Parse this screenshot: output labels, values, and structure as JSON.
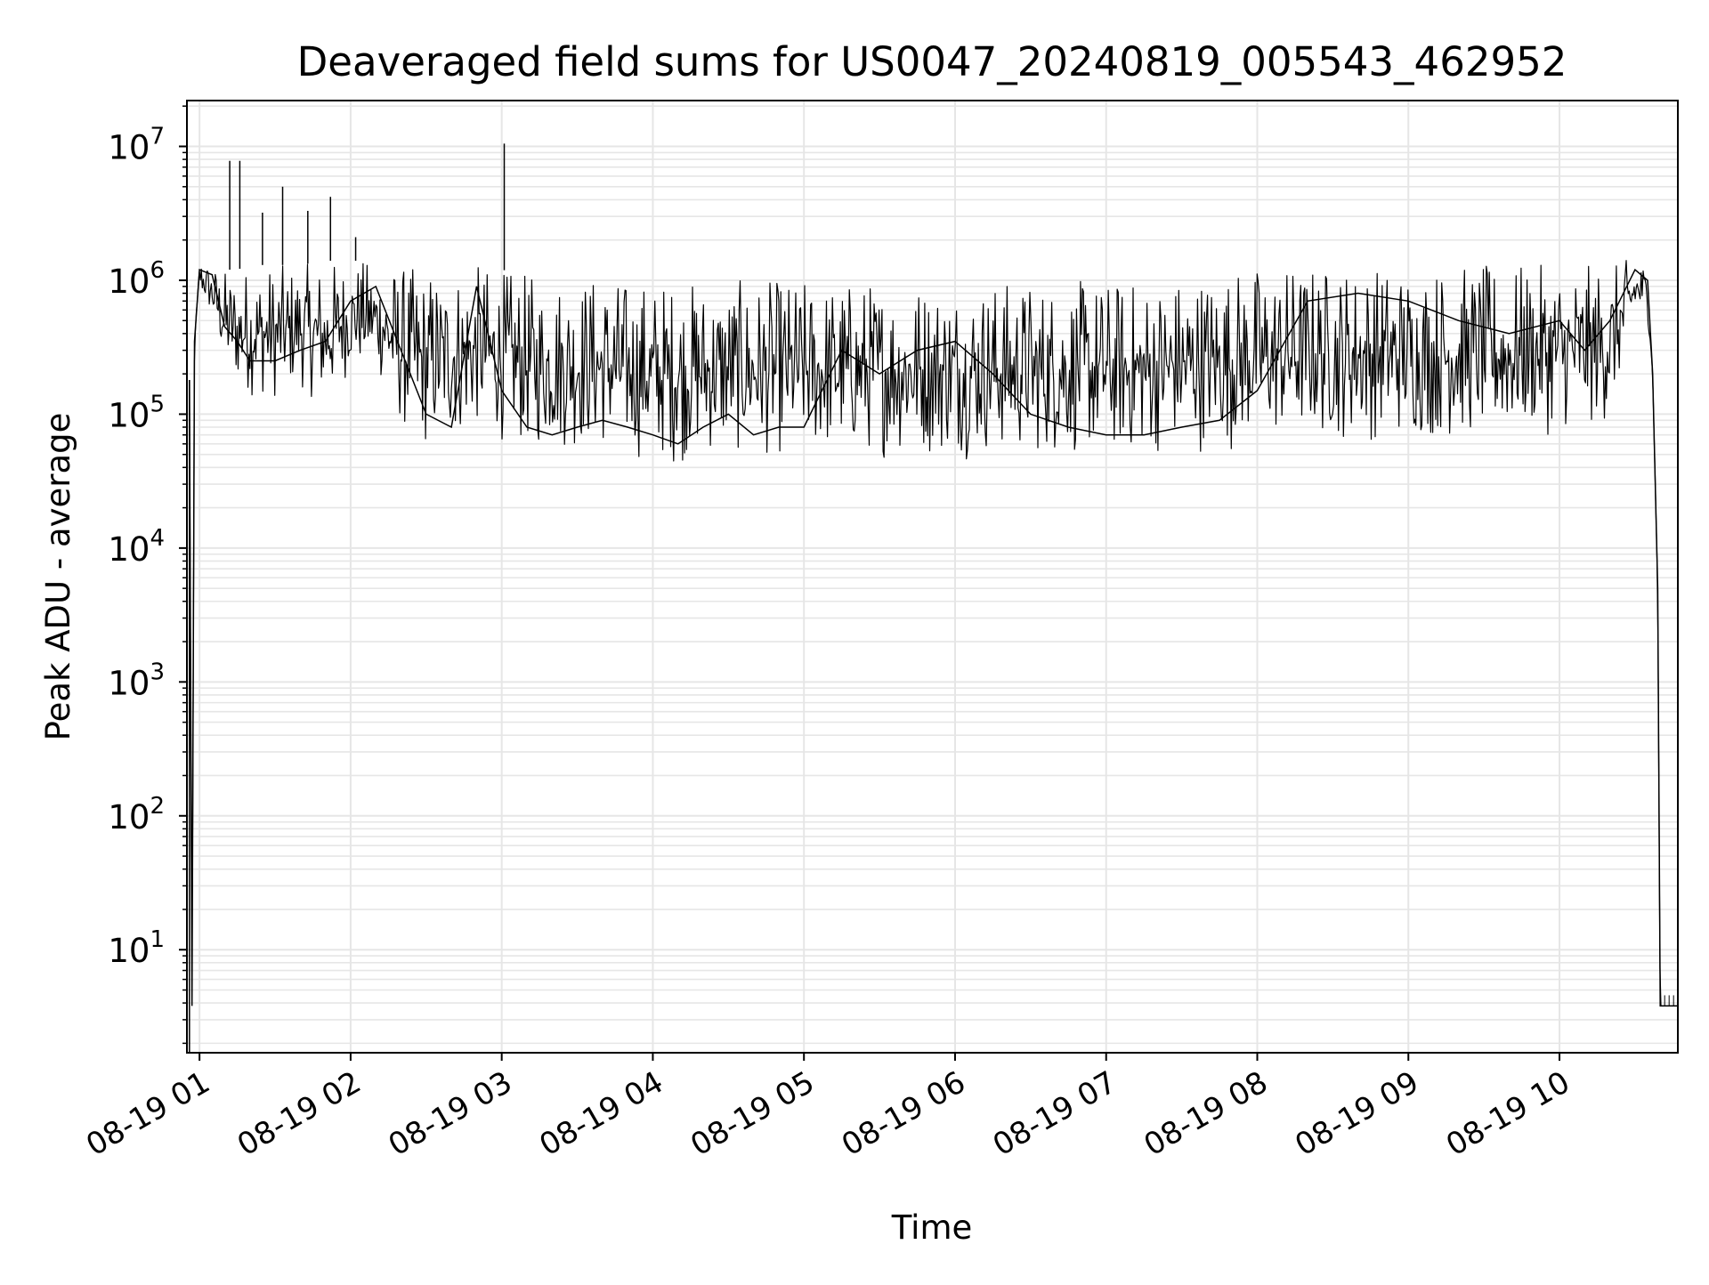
{
  "chart_data": {
    "type": "line",
    "title": "Deaveraged field sums for US0047_20240819_005543_462952",
    "xlabel": "Time",
    "ylabel": "Peak ADU - average",
    "x_scale": "time",
    "y_scale": "log",
    "xlim": [
      "2024-08-19 00:55",
      "2024-08-19 10:47"
    ],
    "ylim": [
      1.7,
      22000000
    ],
    "x_ticks": [
      {
        "value": "2024-08-19 01:00",
        "label": "08-19 01"
      },
      {
        "value": "2024-08-19 02:00",
        "label": "08-19 02"
      },
      {
        "value": "2024-08-19 03:00",
        "label": "08-19 03"
      },
      {
        "value": "2024-08-19 04:00",
        "label": "08-19 04"
      },
      {
        "value": "2024-08-19 05:00",
        "label": "08-19 05"
      },
      {
        "value": "2024-08-19 06:00",
        "label": "08-19 06"
      },
      {
        "value": "2024-08-19 07:00",
        "label": "08-19 07"
      },
      {
        "value": "2024-08-19 08:00",
        "label": "08-19 08"
      },
      {
        "value": "2024-08-19 09:00",
        "label": "08-19 09"
      },
      {
        "value": "2024-08-19 10:00",
        "label": "08-19 10"
      }
    ],
    "y_ticks": [
      {
        "value": 10,
        "base": "10",
        "exp": "1"
      },
      {
        "value": 100,
        "base": "10",
        "exp": "2"
      },
      {
        "value": 1000,
        "base": "10",
        "exp": "3"
      },
      {
        "value": 10000,
        "base": "10",
        "exp": "4"
      },
      {
        "value": 100000,
        "base": "10",
        "exp": "5"
      },
      {
        "value": 1000000,
        "base": "10",
        "exp": "6"
      },
      {
        "value": 10000000,
        "base": "10",
        "exp": "7"
      }
    ],
    "grid": true,
    "minor_grid": true,
    "legend": "none",
    "colors": {
      "line": "#000000",
      "grid": "#e6e6e6",
      "axes": "#000000"
    },
    "series": [
      {
        "x": [
          "2024-08-19 00:56",
          "2024-08-19 00:57",
          "2024-08-19 00:58",
          "2024-08-19 01:00",
          "2024-08-19 01:05",
          "2024-08-19 01:10",
          "2024-08-19 01:15",
          "2024-08-19 01:20",
          "2024-08-19 01:30",
          "2024-08-19 01:40",
          "2024-08-19 01:50",
          "2024-08-19 02:00",
          "2024-08-19 02:10",
          "2024-08-19 02:20",
          "2024-08-19 02:30",
          "2024-08-19 02:40",
          "2024-08-19 02:50",
          "2024-08-19 03:00",
          "2024-08-19 03:10",
          "2024-08-19 03:20",
          "2024-08-19 03:30",
          "2024-08-19 03:40",
          "2024-08-19 03:50",
          "2024-08-19 04:00",
          "2024-08-19 04:10",
          "2024-08-19 04:20",
          "2024-08-19 04:30",
          "2024-08-19 04:40",
          "2024-08-19 04:50",
          "2024-08-19 05:00",
          "2024-08-19 05:15",
          "2024-08-19 05:30",
          "2024-08-19 05:45",
          "2024-08-19 06:00",
          "2024-08-19 06:15",
          "2024-08-19 06:30",
          "2024-08-19 06:45",
          "2024-08-19 07:00",
          "2024-08-19 07:15",
          "2024-08-19 07:30",
          "2024-08-19 07:45",
          "2024-08-19 08:00",
          "2024-08-19 08:20",
          "2024-08-19 08:40",
          "2024-08-19 09:00",
          "2024-08-19 09:20",
          "2024-08-19 09:40",
          "2024-08-19 10:00",
          "2024-08-19 10:10",
          "2024-08-19 10:20",
          "2024-08-19 10:30",
          "2024-08-19 10:35",
          "2024-08-19 10:37",
          "2024-08-19 10:39",
          "2024-08-19 10:40",
          "2024-08-19 10:47"
        ],
        "y": [
          180000,
          3.8,
          350000,
          1200000,
          1100000,
          450000,
          350000,
          250000,
          250000,
          300000,
          350000,
          700000,
          900000,
          300000,
          100000,
          80000,
          900000,
          150000,
          80000,
          70000,
          80000,
          90000,
          80000,
          70000,
          60000,
          80000,
          100000,
          70000,
          80000,
          80000,
          300000,
          200000,
          300000,
          350000,
          200000,
          100000,
          80000,
          70000,
          70000,
          80000,
          90000,
          150000,
          700000,
          800000,
          700000,
          500000,
          400000,
          500000,
          300000,
          500000,
          1200000,
          1000000,
          200000,
          5000,
          3.8,
          3.8
        ],
        "band_low": [
          180000,
          3.8,
          350000,
          800000,
          500000,
          200000,
          150000,
          130000,
          120000,
          150000,
          100000,
          200000,
          200000,
          70000,
          50000,
          55000,
          70000,
          60000,
          50000,
          50000,
          50000,
          50000,
          45000,
          40000,
          40000,
          45000,
          45000,
          45000,
          45000,
          45000,
          45000,
          45000,
          45000,
          45000,
          45000,
          45000,
          45000,
          45000,
          45000,
          50000,
          50000,
          55000,
          60000,
          60000,
          60000,
          60000,
          60000,
          70000,
          70000,
          80000,
          500000,
          500000,
          200000,
          5000,
          3.8,
          3.8
        ],
        "band_high": [
          180000,
          3.8,
          350000,
          1500000,
          1300000,
          1200000,
          1200000,
          1300000,
          1300000,
          1300000,
          1400000,
          1400000,
          1400000,
          1300000,
          1200000,
          1300000,
          1300000,
          1200000,
          1100000,
          1100000,
          1100000,
          1100000,
          1000000,
          1000000,
          1000000,
          1000000,
          1000000,
          1000000,
          1000000,
          1000000,
          1000000,
          1000000,
          1000000,
          1000000,
          1000000,
          1000000,
          1000000,
          1000000,
          1000000,
          1100000,
          1200000,
          1300000,
          1300000,
          1300000,
          1300000,
          1300000,
          1300000,
          1300000,
          1300000,
          1300000,
          1500000,
          1300000,
          200000,
          5000,
          3.8,
          3.8
        ]
      }
    ],
    "spikes": [
      {
        "x": "2024-08-19 01:12",
        "y": 7800000
      },
      {
        "x": "2024-08-19 01:16",
        "y": 7800000
      },
      {
        "x": "2024-08-19 01:25",
        "y": 3200000
      },
      {
        "x": "2024-08-19 01:33",
        "y": 5000000
      },
      {
        "x": "2024-08-19 01:43",
        "y": 3300000
      },
      {
        "x": "2024-08-19 01:52",
        "y": 4200000
      },
      {
        "x": "2024-08-19 02:02",
        "y": 2100000
      },
      {
        "x": "2024-08-19 03:01",
        "y": 10500000
      }
    ]
  }
}
